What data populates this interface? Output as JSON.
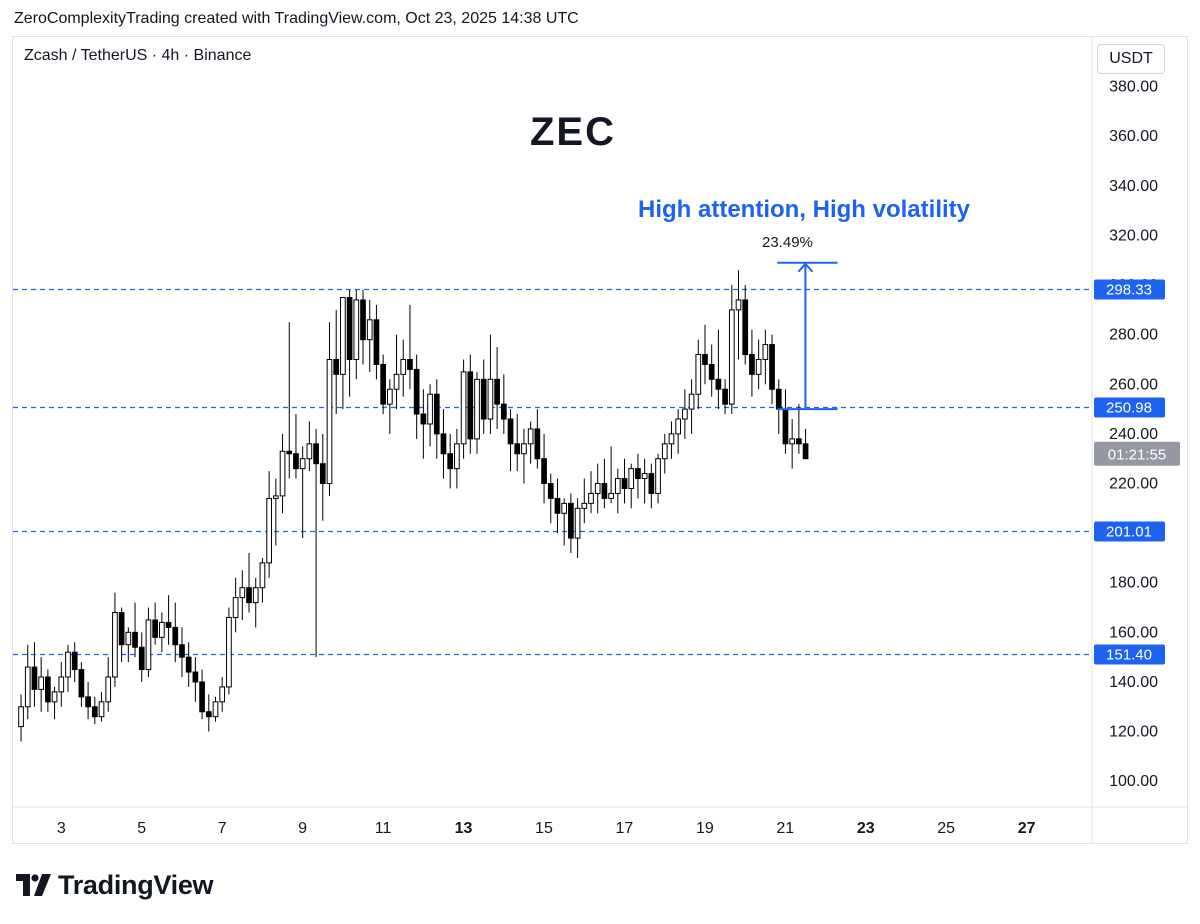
{
  "header": {
    "attribution": "ZeroComplexityTrading created with TradingView.com, Oct 23, 2025 14:38 UTC"
  },
  "symbol_line": "Zcash / TetherUS · 4h · Binance",
  "currency": "USDT",
  "logo_text": "TradingView",
  "colors": {
    "accent": "#1e63f0",
    "candle_up": "#ffffff",
    "candle_down": "#000000",
    "grid": "#e0e3eb",
    "countdown_bg": "#9598a1"
  },
  "chart_data": {
    "type": "candlestick",
    "title": "ZEC",
    "annotation": "High attention, High volatility",
    "measure": {
      "label": "23.49%",
      "from": 250,
      "to": 309,
      "x_day": 21.5,
      "x_from_day": 20.8,
      "x_to_day": 22.3
    },
    "ylim": [
      90,
      400
    ],
    "xlim": [
      1.8,
      28.6
    ],
    "y_ticks": [
      "380.00",
      "360.00",
      "340.00",
      "320.00",
      "300.00",
      "280.00",
      "260.00",
      "240.00",
      "220.00",
      "200.00",
      "180.00",
      "160.00",
      "140.00",
      "120.00",
      "100.00"
    ],
    "x_ticks": [
      {
        "day": 3,
        "label": "3",
        "bold": false
      },
      {
        "day": 5,
        "label": "5",
        "bold": false
      },
      {
        "day": 7,
        "label": "7",
        "bold": false
      },
      {
        "day": 9,
        "label": "9",
        "bold": false
      },
      {
        "day": 11,
        "label": "11",
        "bold": false
      },
      {
        "day": 13,
        "label": "13",
        "bold": true
      },
      {
        "day": 15,
        "label": "15",
        "bold": false
      },
      {
        "day": 17,
        "label": "17",
        "bold": false
      },
      {
        "day": 19,
        "label": "19",
        "bold": false
      },
      {
        "day": 21,
        "label": "21",
        "bold": false
      },
      {
        "day": 23,
        "label": "23",
        "bold": true
      },
      {
        "day": 25,
        "label": "25",
        "bold": false
      },
      {
        "day": 27,
        "label": "27",
        "bold": true
      }
    ],
    "levels": [
      {
        "value": 298.33,
        "label": "298.33"
      },
      {
        "value": 250.98,
        "label": "250.98"
      },
      {
        "value": 201.01,
        "label": "201.01"
      },
      {
        "value": 151.4,
        "label": "151.40"
      }
    ],
    "price_label": {
      "value": 232,
      "label": "01:21:55"
    },
    "candle_start_day": 2.0,
    "candle_step_days": 0.1667,
    "ohlc": [
      [
        122,
        135,
        116,
        130
      ],
      [
        130,
        155,
        125,
        146
      ],
      [
        146,
        156,
        130,
        137
      ],
      [
        137,
        150,
        128,
        142
      ],
      [
        142,
        145,
        128,
        132
      ],
      [
        132,
        138,
        125,
        136
      ],
      [
        136,
        148,
        130,
        142
      ],
      [
        142,
        155,
        136,
        152
      ],
      [
        152,
        156,
        140,
        145
      ],
      [
        145,
        148,
        130,
        134
      ],
      [
        134,
        140,
        125,
        130
      ],
      [
        130,
        134,
        123,
        126
      ],
      [
        126,
        136,
        124,
        132
      ],
      [
        132,
        150,
        128,
        142
      ],
      [
        142,
        176,
        138,
        168
      ],
      [
        168,
        170,
        148,
        155
      ],
      [
        155,
        162,
        148,
        160
      ],
      [
        160,
        172,
        150,
        154
      ],
      [
        154,
        160,
        140,
        145
      ],
      [
        145,
        170,
        142,
        165
      ],
      [
        165,
        172,
        155,
        158
      ],
      [
        158,
        168,
        152,
        164
      ],
      [
        164,
        175,
        155,
        162
      ],
      [
        162,
        172,
        148,
        155
      ],
      [
        155,
        162,
        142,
        150
      ],
      [
        150,
        156,
        138,
        144
      ],
      [
        144,
        150,
        132,
        140
      ],
      [
        140,
        145,
        125,
        128
      ],
      [
        128,
        135,
        120,
        126
      ],
      [
        126,
        134,
        124,
        132
      ],
      [
        132,
        142,
        128,
        138
      ],
      [
        138,
        170,
        135,
        166
      ],
      [
        166,
        182,
        160,
        174
      ],
      [
        174,
        185,
        165,
        178
      ],
      [
        178,
        192,
        168,
        172
      ],
      [
        172,
        182,
        162,
        178
      ],
      [
        178,
        190,
        172,
        188
      ],
      [
        188,
        225,
        182,
        214
      ],
      [
        214,
        222,
        195,
        215
      ],
      [
        215,
        240,
        208,
        233
      ],
      [
        233,
        285,
        222,
        232
      ],
      [
        232,
        248,
        222,
        226
      ],
      [
        226,
        235,
        198,
        230
      ],
      [
        230,
        245,
        225,
        236
      ],
      [
        236,
        242,
        150,
        228
      ],
      [
        228,
        240,
        205,
        220
      ],
      [
        220,
        285,
        215,
        270
      ],
      [
        270,
        290,
        248,
        264
      ],
      [
        264,
        292,
        250,
        295
      ],
      [
        295,
        298,
        255,
        270
      ],
      [
        270,
        298,
        262,
        294
      ],
      [
        294,
        298,
        268,
        278
      ],
      [
        278,
        294,
        265,
        286
      ],
      [
        286,
        292,
        262,
        268
      ],
      [
        268,
        272,
        248,
        252
      ],
      [
        252,
        262,
        240,
        258
      ],
      [
        258,
        280,
        250,
        264
      ],
      [
        264,
        278,
        255,
        270
      ],
      [
        270,
        292,
        258,
        266
      ],
      [
        266,
        272,
        238,
        248
      ],
      [
        248,
        258,
        230,
        244
      ],
      [
        244,
        260,
        235,
        256
      ],
      [
        256,
        262,
        230,
        240
      ],
      [
        240,
        250,
        222,
        232
      ],
      [
        232,
        240,
        218,
        226
      ],
      [
        226,
        242,
        218,
        236
      ],
      [
        236,
        270,
        230,
        265
      ],
      [
        265,
        272,
        232,
        238
      ],
      [
        238,
        265,
        232,
        262
      ],
      [
        262,
        270,
        240,
        246
      ],
      [
        246,
        280,
        240,
        262
      ],
      [
        262,
        275,
        242,
        252
      ],
      [
        252,
        264,
        240,
        246
      ],
      [
        246,
        250,
        225,
        236
      ],
      [
        236,
        248,
        225,
        232
      ],
      [
        232,
        242,
        220,
        236
      ],
      [
        236,
        245,
        228,
        242
      ],
      [
        242,
        250,
        226,
        230
      ],
      [
        230,
        240,
        212,
        220
      ],
      [
        220,
        224,
        204,
        214
      ],
      [
        214,
        222,
        200,
        208
      ],
      [
        208,
        214,
        195,
        212
      ],
      [
        212,
        216,
        192,
        198
      ],
      [
        198,
        214,
        190,
        210
      ],
      [
        210,
        222,
        204,
        212
      ],
      [
        212,
        225,
        208,
        216
      ],
      [
        216,
        228,
        208,
        220
      ],
      [
        220,
        230,
        210,
        214
      ],
      [
        214,
        235,
        212,
        216
      ],
      [
        216,
        226,
        208,
        222
      ],
      [
        222,
        230,
        212,
        218
      ],
      [
        218,
        228,
        210,
        226
      ],
      [
        226,
        232,
        214,
        222
      ],
      [
        222,
        230,
        212,
        224
      ],
      [
        224,
        228,
        210,
        216
      ],
      [
        216,
        232,
        212,
        230
      ],
      [
        230,
        240,
        224,
        236
      ],
      [
        236,
        245,
        230,
        240
      ],
      [
        240,
        250,
        232,
        246
      ],
      [
        246,
        258,
        238,
        250
      ],
      [
        250,
        262,
        240,
        256
      ],
      [
        256,
        278,
        250,
        272
      ],
      [
        272,
        284,
        260,
        268
      ],
      [
        268,
        276,
        255,
        262
      ],
      [
        262,
        282,
        250,
        258
      ],
      [
        258,
        262,
        248,
        252
      ],
      [
        252,
        300,
        248,
        290
      ],
      [
        290,
        306,
        270,
        294
      ],
      [
        294,
        300,
        268,
        272
      ],
      [
        272,
        282,
        255,
        264
      ],
      [
        264,
        278,
        258,
        270
      ],
      [
        270,
        282,
        260,
        276
      ],
      [
        276,
        280,
        252,
        258
      ],
      [
        258,
        262,
        240,
        250
      ],
      [
        250,
        258,
        232,
        236
      ],
      [
        236,
        246,
        226,
        238
      ],
      [
        238,
        252,
        232,
        236
      ],
      [
        236,
        242,
        232,
        230
      ]
    ]
  }
}
